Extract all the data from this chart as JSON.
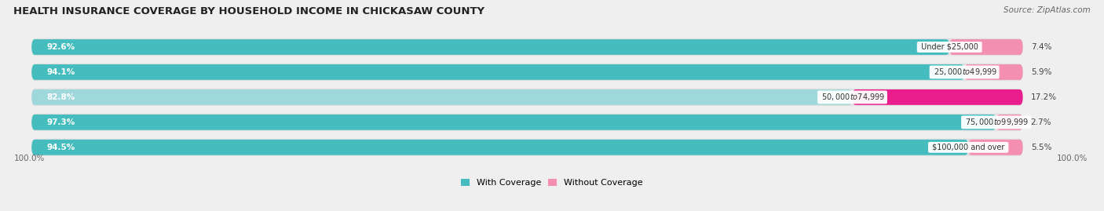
{
  "title": "HEALTH INSURANCE COVERAGE BY HOUSEHOLD INCOME IN CHICKASAW COUNTY",
  "source": "Source: ZipAtlas.com",
  "categories": [
    "Under $25,000",
    "$25,000 to $49,999",
    "$50,000 to $74,999",
    "$75,000 to $99,999",
    "$100,000 and over"
  ],
  "with_coverage": [
    92.6,
    94.1,
    82.8,
    97.3,
    94.5
  ],
  "without_coverage": [
    7.4,
    5.9,
    17.2,
    2.7,
    5.5
  ],
  "coverage_color_rows": [
    "#45BDBF",
    "#45BDBF",
    "#9ED8DB",
    "#45BDBF",
    "#45BDBF"
  ],
  "no_coverage_color": "#F48FB1",
  "no_coverage_color_row2": "#E91E8C",
  "bg_color": "#EFEFEF",
  "bar_bg_color": "#E0E0E0",
  "title_fontsize": 9.5,
  "source_fontsize": 7.5,
  "bar_label_fontsize": 7.5,
  "category_label_fontsize": 7,
  "legend_fontsize": 8,
  "axis_label_fontsize": 7.5,
  "figsize": [
    14.06,
    2.69
  ],
  "dpi": 100
}
